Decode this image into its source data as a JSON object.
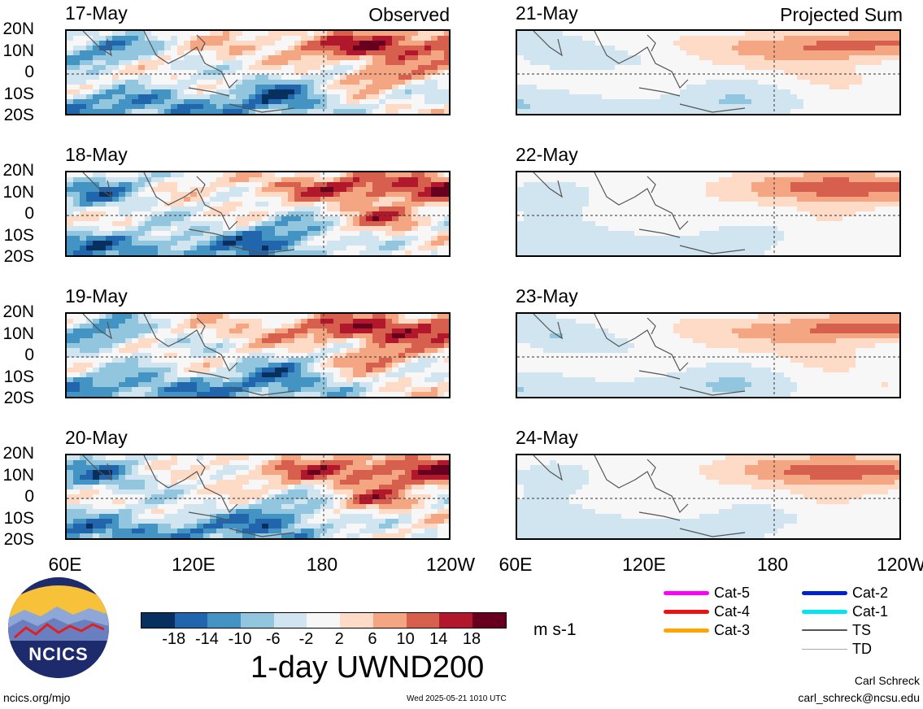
{
  "chart_data": {
    "type": "heatmap",
    "title": "1-day UWND200",
    "units": "m s-1",
    "variable": "UWND200",
    "colorbar": {
      "ticks": [
        "-18",
        "-14",
        "-10",
        "-6",
        "-2",
        "2",
        "6",
        "10",
        "14",
        "18"
      ],
      "colors": [
        "#08305f",
        "#2166ac",
        "#4393c3",
        "#92c5de",
        "#d1e5f0",
        "#f7f7f7",
        "#fddbc7",
        "#f4a582",
        "#d6604d",
        "#b2182b",
        "#67001f"
      ]
    },
    "lat_labels": [
      "20N",
      "10N",
      "0",
      "10S",
      "20S"
    ],
    "lon_labels": [
      "60E",
      "120E",
      "180",
      "120W"
    ],
    "lon_range": [
      60,
      240
    ],
    "lat_range": [
      -20,
      20
    ],
    "panels": [
      {
        "date": "17-May",
        "tag": "Observed",
        "column": "observed",
        "row": 0
      },
      {
        "date": "18-May",
        "tag": "",
        "column": "observed",
        "row": 1
      },
      {
        "date": "19-May",
        "tag": "",
        "column": "observed",
        "row": 2
      },
      {
        "date": "20-May",
        "tag": "",
        "column": "observed",
        "row": 3
      },
      {
        "date": "21-May",
        "tag": "Projected Sum",
        "column": "projected",
        "row": 0
      },
      {
        "date": "22-May",
        "tag": "",
        "column": "projected",
        "row": 1
      },
      {
        "date": "23-May",
        "tag": "",
        "column": "projected",
        "row": 2
      },
      {
        "date": "24-May",
        "tag": "",
        "column": "projected",
        "row": 3
      }
    ]
  },
  "logo": {
    "text": "NCICS"
  },
  "track_legend": [
    {
      "label": "Cat-5",
      "color": "#ff00ff"
    },
    {
      "label": "Cat-4",
      "color": "#ee1111"
    },
    {
      "label": "Cat-3",
      "color": "#ffa500"
    },
    {
      "label": "Cat-2",
      "color": "#0022cc"
    },
    {
      "label": "Cat-1",
      "color": "#00e5ee"
    },
    {
      "label": "TS",
      "color": "#555555"
    },
    {
      "label": "TD",
      "color": "#aaaaaa"
    }
  ],
  "footer": {
    "url": "ncics.org/mjo",
    "timestamp": "Wed 2025-05-21 1010 UTC",
    "author": "Carl Schreck",
    "email": "carl_schreck@ncsu.edu"
  }
}
